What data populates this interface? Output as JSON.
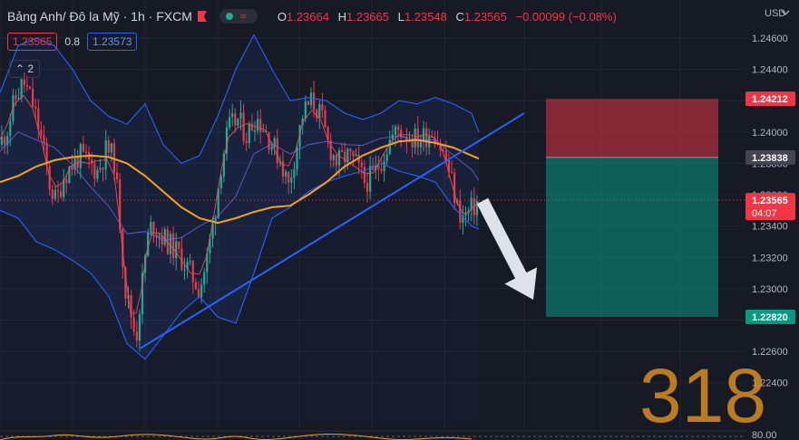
{
  "header": {
    "title": "Bảng Anh/ Đô la Mỹ · 1h · FXCM",
    "ohlc": [
      {
        "k": "O",
        "v": "1.23664"
      },
      {
        "k": "H",
        "v": "1.23665"
      },
      {
        "k": "L",
        "v": "1.23548"
      },
      {
        "k": "C",
        "v": "1.23565"
      }
    ],
    "change": "−0.00099 (−0.08%)",
    "bid": "1.23565",
    "spread": "0.8",
    "ask": "1.23573",
    "collapse": "2",
    "currency": "USD"
  },
  "colors": {
    "bg": "#161a25",
    "up": "#22ab94",
    "down": "#f23645",
    "sma": "#f7a21b",
    "band": "#2962ff"
  },
  "chart_data": {
    "type": "candlestick",
    "ylim": [
      1.2215,
      1.2475
    ],
    "y_ticks": [
      1.246,
      1.244,
      1.242,
      1.24,
      1.238,
      1.236,
      1.234,
      1.232,
      1.23,
      1.228,
      1.226,
      1.224
    ],
    "y_tick_labels": [
      "1.24600",
      "1.24400",
      "1.24200",
      "1.24000",
      "1.23800",
      "1.23600",
      "1.23400",
      "1.23200",
      "1.23000",
      "1.22800",
      "1.22600",
      "1.22400"
    ],
    "price_line": 1.23565,
    "price_path": [
      [
        0,
        1.2392
      ],
      [
        8,
        1.2402
      ],
      [
        16,
        1.242
      ],
      [
        26,
        1.2432
      ],
      [
        36,
        1.2418
      ],
      [
        46,
        1.2395
      ],
      [
        54,
        1.2368
      ],
      [
        62,
        1.2355
      ],
      [
        70,
        1.2372
      ],
      [
        78,
        1.2378
      ],
      [
        88,
        1.2385
      ],
      [
        98,
        1.238
      ],
      [
        108,
        1.2375
      ],
      [
        118,
        1.239
      ],
      [
        126,
        1.2382
      ],
      [
        132,
        1.2345
      ],
      [
        138,
        1.23
      ],
      [
        144,
        1.2285
      ],
      [
        150,
        1.2268
      ],
      [
        156,
        1.23
      ],
      [
        162,
        1.233
      ],
      [
        168,
        1.2342
      ],
      [
        176,
        1.2335
      ],
      [
        184,
        1.233
      ],
      [
        192,
        1.2325
      ],
      [
        200,
        1.232
      ],
      [
        210,
        1.231
      ],
      [
        220,
        1.23
      ],
      [
        228,
        1.2318
      ],
      [
        236,
        1.2345
      ],
      [
        244,
        1.238
      ],
      [
        252,
        1.2402
      ],
      [
        262,
        1.2408
      ],
      [
        272,
        1.2398
      ],
      [
        282,
        1.241
      ],
      [
        292,
        1.2402
      ],
      [
        300,
        1.2392
      ],
      [
        310,
        1.2382
      ],
      [
        318,
        1.2365
      ],
      [
        326,
        1.2388
      ],
      [
        334,
        1.2412
      ],
      [
        344,
        1.242
      ],
      [
        354,
        1.241
      ],
      [
        362,
        1.2392
      ],
      [
        372,
        1.238
      ],
      [
        382,
        1.2385
      ],
      [
        392,
        1.238
      ],
      [
        402,
        1.2368
      ],
      [
        412,
        1.2372
      ],
      [
        420,
        1.2382
      ],
      [
        430,
        1.2395
      ],
      [
        440,
        1.2402
      ],
      [
        450,
        1.2398
      ],
      [
        460,
        1.2395
      ],
      [
        470,
        1.2398
      ],
      [
        478,
        1.2402
      ],
      [
        486,
        1.239
      ],
      [
        492,
        1.2382
      ],
      [
        498,
        1.2368
      ],
      [
        504,
        1.2352
      ],
      [
        510,
        1.2345
      ],
      [
        516,
        1.2348
      ],
      [
        522,
        1.2352
      ],
      [
        528,
        1.2357
      ]
    ],
    "upper_band_path": [
      [
        0,
        1.2425
      ],
      [
        20,
        1.2455
      ],
      [
        40,
        1.246
      ],
      [
        60,
        1.2455
      ],
      [
        80,
        1.244
      ],
      [
        100,
        1.242
      ],
      [
        120,
        1.241
      ],
      [
        140,
        1.2405
      ],
      [
        160,
        1.2418
      ],
      [
        180,
        1.2392
      ],
      [
        200,
        1.238
      ],
      [
        220,
        1.2385
      ],
      [
        240,
        1.241
      ],
      [
        260,
        1.244
      ],
      [
        280,
        1.2462
      ],
      [
        300,
        1.244
      ],
      [
        320,
        1.242
      ],
      [
        340,
        1.2422
      ],
      [
        360,
        1.242
      ],
      [
        380,
        1.2412
      ],
      [
        400,
        1.2408
      ],
      [
        420,
        1.2412
      ],
      [
        440,
        1.242
      ],
      [
        460,
        1.2418
      ],
      [
        480,
        1.2422
      ],
      [
        500,
        1.2418
      ],
      [
        520,
        1.2412
      ],
      [
        528,
        1.24
      ]
    ],
    "lower_band_path": [
      [
        0,
        1.235
      ],
      [
        20,
        1.2345
      ],
      [
        40,
        1.233
      ],
      [
        60,
        1.2325
      ],
      [
        80,
        1.2318
      ],
      [
        100,
        1.231
      ],
      [
        120,
        1.2295
      ],
      [
        140,
        1.2265
      ],
      [
        160,
        1.2255
      ],
      [
        180,
        1.227
      ],
      [
        200,
        1.2285
      ],
      [
        220,
        1.2295
      ],
      [
        240,
        1.2282
      ],
      [
        260,
        1.2278
      ],
      [
        280,
        1.231
      ],
      [
        300,
        1.2345
      ],
      [
        320,
        1.2352
      ],
      [
        340,
        1.2362
      ],
      [
        360,
        1.2368
      ],
      [
        380,
        1.2372
      ],
      [
        400,
        1.2375
      ],
      [
        420,
        1.238
      ],
      [
        440,
        1.2375
      ],
      [
        460,
        1.2372
      ],
      [
        480,
        1.2368
      ],
      [
        500,
        1.2352
      ],
      [
        520,
        1.234
      ],
      [
        528,
        1.2338
      ]
    ],
    "sma_path": [
      [
        0,
        1.2368
      ],
      [
        20,
        1.2372
      ],
      [
        40,
        1.2378
      ],
      [
        60,
        1.2382
      ],
      [
        80,
        1.2384
      ],
      [
        100,
        1.2385
      ],
      [
        120,
        1.2384
      ],
      [
        140,
        1.238
      ],
      [
        160,
        1.2372
      ],
      [
        180,
        1.2362
      ],
      [
        200,
        1.2352
      ],
      [
        220,
        1.2345
      ],
      [
        240,
        1.2342
      ],
      [
        260,
        1.2345
      ],
      [
        280,
        1.2349
      ],
      [
        300,
        1.2352
      ],
      [
        320,
        1.2353
      ],
      [
        340,
        1.236
      ],
      [
        360,
        1.2368
      ],
      [
        380,
        1.2378
      ],
      [
        400,
        1.2385
      ],
      [
        420,
        1.239
      ],
      [
        440,
        1.2394
      ],
      [
        460,
        1.2395
      ],
      [
        480,
        1.2393
      ],
      [
        500,
        1.239
      ],
      [
        520,
        1.2385
      ],
      [
        528,
        1.2383
      ]
    ],
    "trendline": [
      [
        155,
        1.2262
      ],
      [
        578,
        1.2412
      ]
    ],
    "position": {
      "type": "short",
      "entry": 1.23838,
      "stop": 1.24212,
      "target": 1.2282,
      "x_start": 602,
      "x_end": 792,
      "entry_label": "1.23838",
      "stop_label": "1.24212",
      "target_label": "1.22820"
    },
    "last_price_label": "1.23565",
    "countdown": "04:07",
    "annotation_arrow": {
      "from": [
        532,
        1.2356
      ],
      "to": [
        588,
        1.2293
      ]
    },
    "watermark": "318",
    "oscillator_level": "80.00"
  }
}
